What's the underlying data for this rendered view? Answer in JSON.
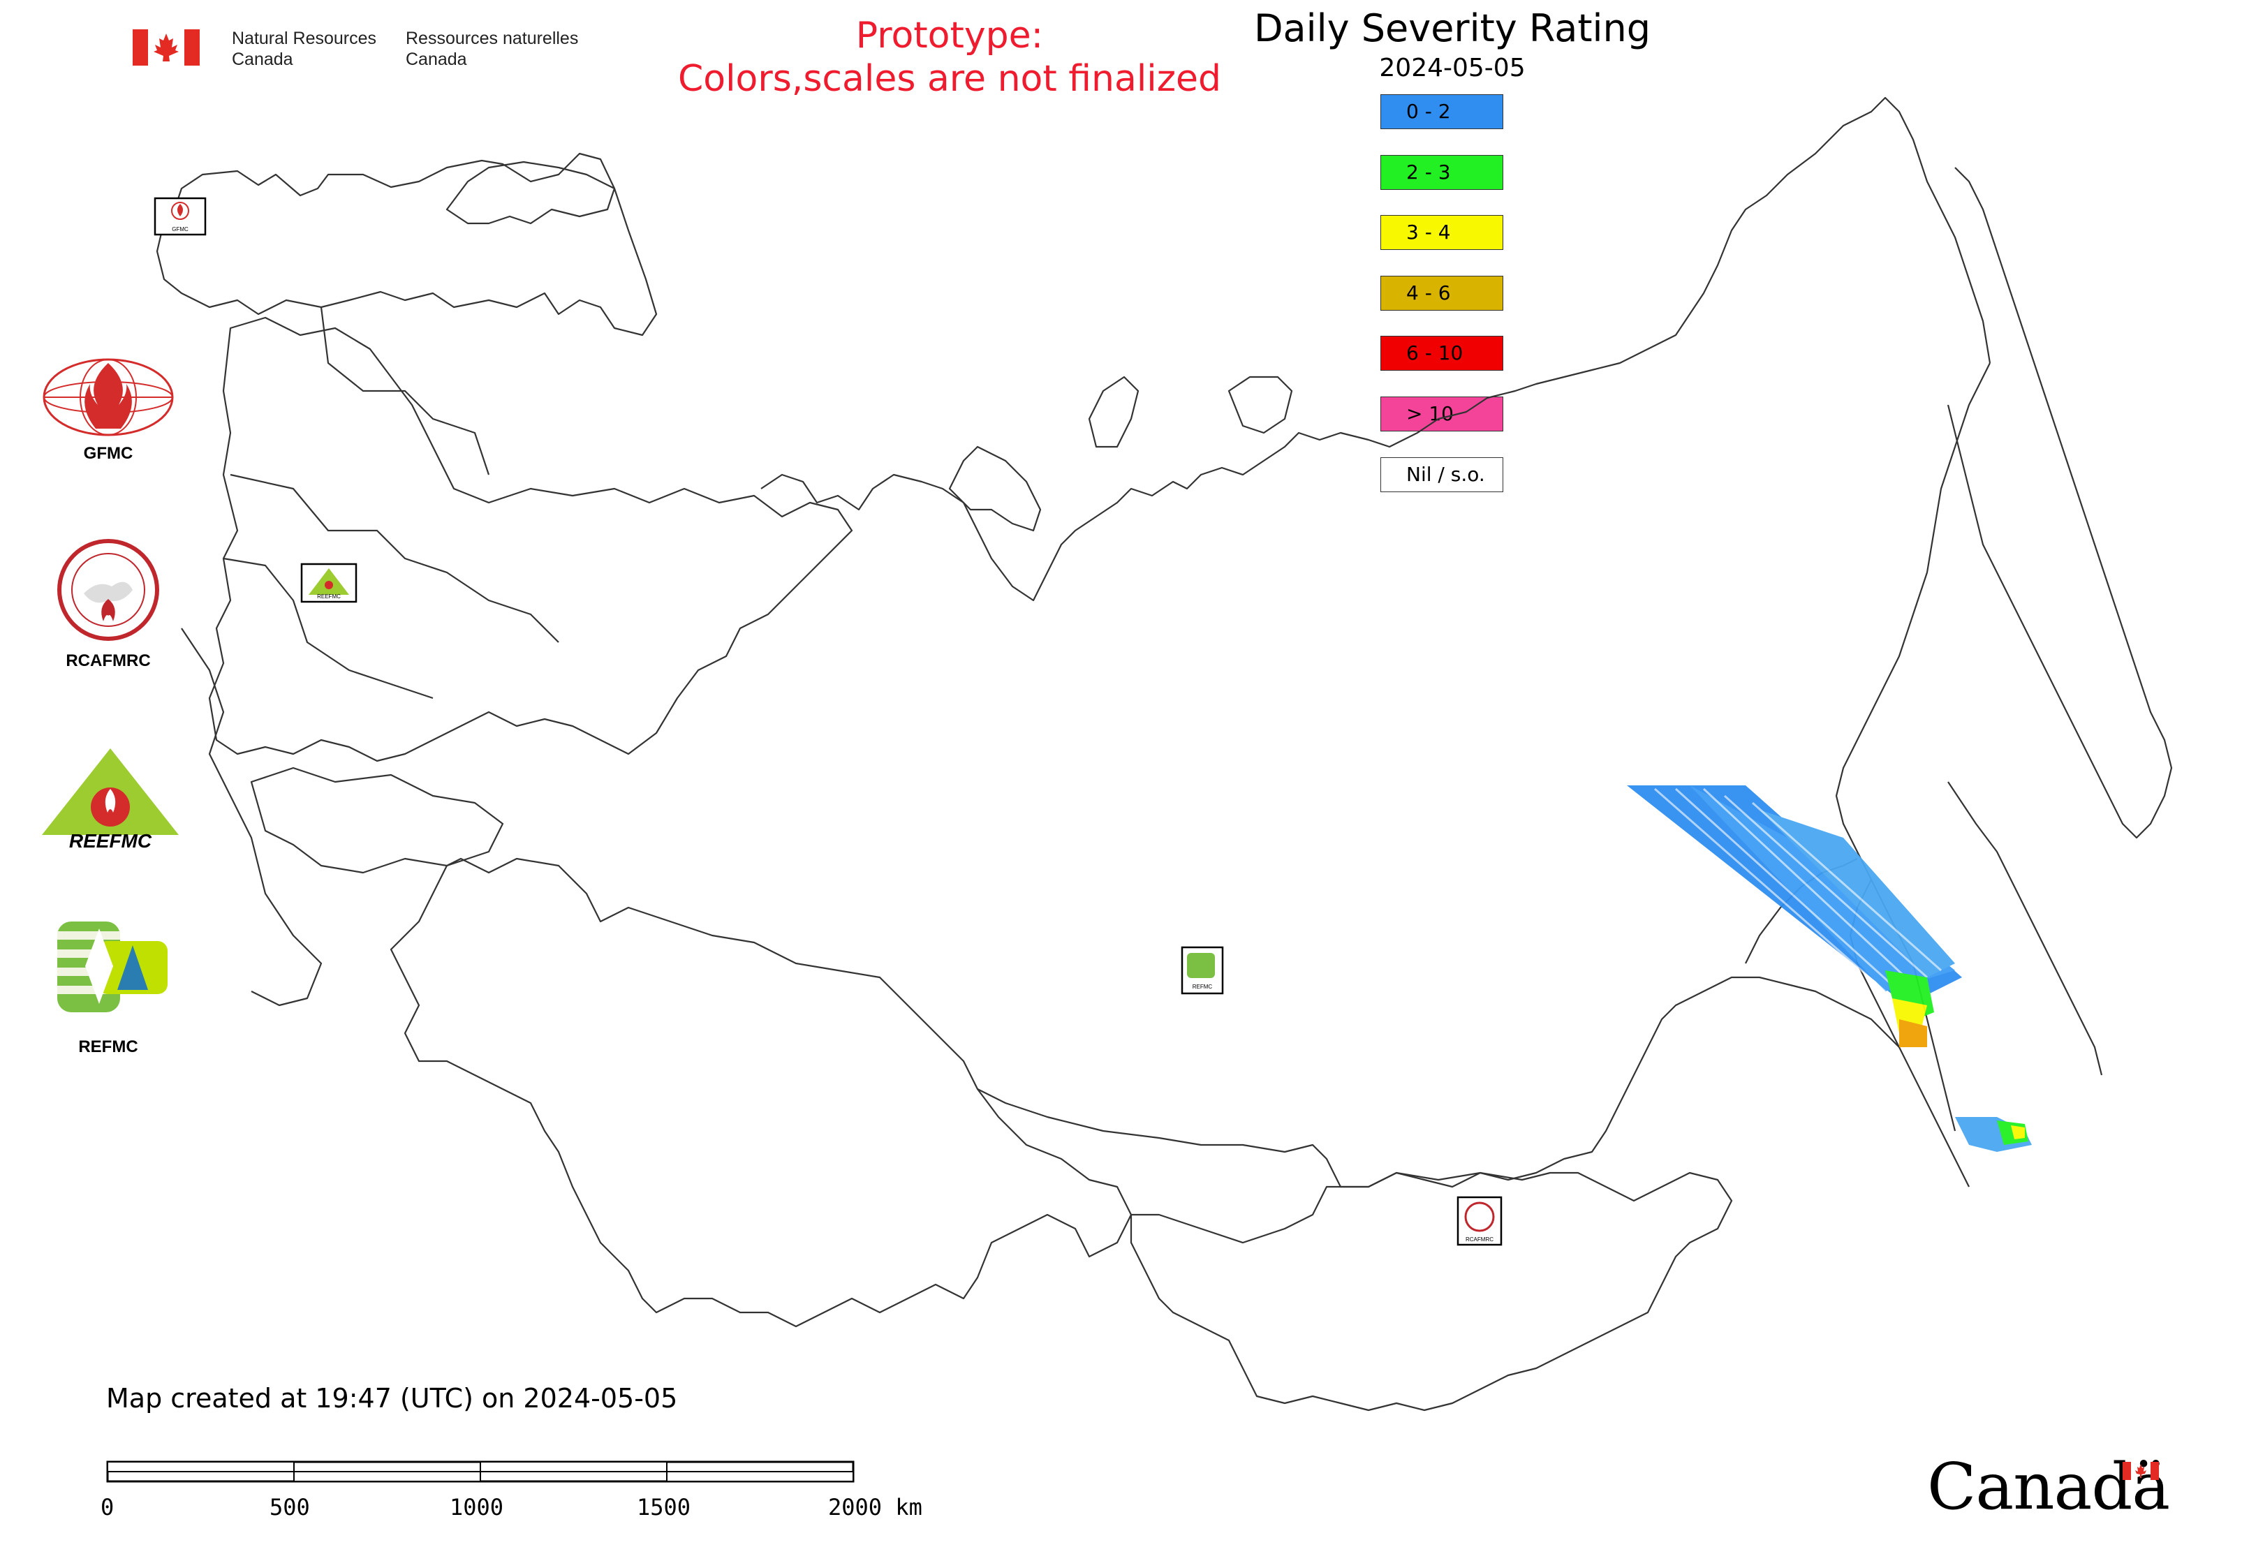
{
  "header": {
    "nrcan_en_line1": "Natural Resources",
    "nrcan_en_line2": "Canada",
    "nrcan_fr_line1": "Ressources naturelles",
    "nrcan_fr_line2": "Canada",
    "prototype_line1": "Prototype:",
    "prototype_line2": "Colors,scales are not finalized",
    "prototype_color": "#ee1c2e"
  },
  "map": {
    "title": "Daily Severity Rating",
    "date": "2024-05-05"
  },
  "legend": [
    {
      "label": "0 - 2",
      "color": "#2f8ef0"
    },
    {
      "label": "2 - 3",
      "color": "#22f022"
    },
    {
      "label": "3 - 4",
      "color": "#f8f800"
    },
    {
      "label": "4 - 6",
      "color": "#d8b400"
    },
    {
      "label": "6 - 10",
      "color": "#f00000"
    },
    {
      "label": "> 10",
      "color": "#f4449a"
    },
    {
      "label": "Nil / s.o.",
      "color": "#ffffff"
    }
  ],
  "logos": {
    "gfmc": "GFMC",
    "rcafmrc": "RCAFMRC",
    "reefmc_word": "REEFMC",
    "refmc": "REFMC",
    "map_marker_gfmc": "GFMC",
    "map_marker_reefmc": "REEFMC",
    "map_marker_refmc": "REFMC",
    "map_marker_rcafmrc": "RCAFMRC"
  },
  "footer": {
    "created": "Map created at 19:47 (UTC) on 2024-05-05",
    "scale_labels": [
      "0",
      "500",
      "1000",
      "1500",
      "2000 km"
    ],
    "wordmark": "Canadä"
  }
}
